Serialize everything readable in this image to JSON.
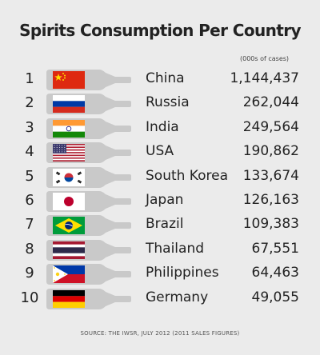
{
  "chart_data": {
    "type": "table",
    "title": "Spirits Consumption Per Country",
    "unit_note": "(000s of cases)",
    "source": "SOURCE: THE IWSR, JULY 2012 (2011 SALES FIGURES)",
    "rows": [
      {
        "rank": "1",
        "country": "China",
        "flag": "china-flag-icon",
        "value": 1144437,
        "value_label": "1,144,437"
      },
      {
        "rank": "2",
        "country": "Russia",
        "flag": "russia-flag-icon",
        "value": 262044,
        "value_label": "262,044"
      },
      {
        "rank": "3",
        "country": "India",
        "flag": "india-flag-icon",
        "value": 249564,
        "value_label": "249,564"
      },
      {
        "rank": "4",
        "country": "USA",
        "flag": "usa-flag-icon",
        "value": 190862,
        "value_label": "190,862"
      },
      {
        "rank": "5",
        "country": "South Korea",
        "flag": "south-korea-flag-icon",
        "value": 133674,
        "value_label": "133,674"
      },
      {
        "rank": "6",
        "country": "Japan",
        "flag": "japan-flag-icon",
        "value": 126163,
        "value_label": "126,163"
      },
      {
        "rank": "7",
        "country": "Brazil",
        "flag": "brazil-flag-icon",
        "value": 109383,
        "value_label": "109,383"
      },
      {
        "rank": "8",
        "country": "Thailand",
        "flag": "thailand-flag-icon",
        "value": 67551,
        "value_label": "67,551"
      },
      {
        "rank": "9",
        "country": "Philippines",
        "flag": "philippines-flag-icon",
        "value": 64463,
        "value_label": "64,463"
      },
      {
        "rank": "10",
        "country": "Germany",
        "flag": "germany-flag-icon",
        "value": 49055,
        "value_label": "49,055"
      }
    ],
    "colors": {
      "background": "#ebebeb",
      "bottle": "#c9c9c9",
      "text": "#222222"
    }
  }
}
